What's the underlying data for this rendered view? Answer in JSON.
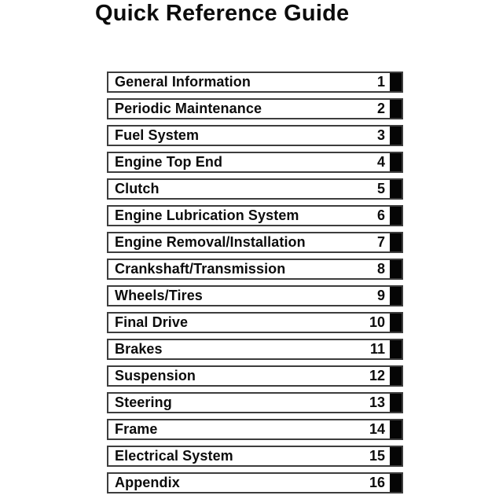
{
  "page": {
    "title": "Quick Reference Guide"
  },
  "colors": {
    "background": "#ffffff",
    "text": "#0c0c0c",
    "row_border": "#3d3d3d",
    "tab": "#050505"
  },
  "toc": {
    "items": [
      {
        "label": "General Information",
        "number": "1"
      },
      {
        "label": "Periodic Maintenance",
        "number": "2"
      },
      {
        "label": "Fuel System",
        "number": "3"
      },
      {
        "label": "Engine Top End",
        "number": "4"
      },
      {
        "label": "Clutch",
        "number": "5"
      },
      {
        "label": "Engine Lubrication System",
        "number": "6"
      },
      {
        "label": "Engine Removal/Installation",
        "number": "7"
      },
      {
        "label": "Crankshaft/Transmission",
        "number": "8"
      },
      {
        "label": "Wheels/Tires",
        "number": "9"
      },
      {
        "label": "Final Drive",
        "number": "10"
      },
      {
        "label": "Brakes",
        "number": "11"
      },
      {
        "label": "Suspension",
        "number": "12"
      },
      {
        "label": "Steering",
        "number": "13"
      },
      {
        "label": "Frame",
        "number": "14"
      },
      {
        "label": "Electrical System",
        "number": "15"
      },
      {
        "label": "Appendix",
        "number": "16"
      }
    ]
  }
}
